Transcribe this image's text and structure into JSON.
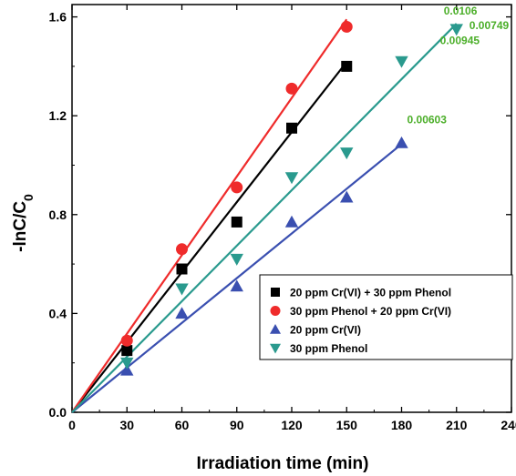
{
  "chart_data": {
    "type": "scatter",
    "xlabel": "Irradiation time (min)",
    "ylabel_main": "-lnC/C",
    "ylabel_sub": "0",
    "xlim": [
      0,
      240
    ],
    "ylim": [
      0,
      1.65
    ],
    "xticks": [
      "0",
      "30",
      "60",
      "90",
      "120",
      "150",
      "180",
      "210",
      "240"
    ],
    "yticks": [
      "0.0",
      "0.4",
      "0.8",
      "1.2",
      "1.6"
    ],
    "grid": false,
    "legend_position": "center-right",
    "series": [
      {
        "name": "20 ppm Cr(VI) + 30 ppm Phenol",
        "marker": "square",
        "color": "#000000",
        "x": [
          30,
          60,
          90,
          120,
          150
        ],
        "y": [
          0.25,
          0.58,
          0.77,
          1.15,
          1.4
        ],
        "fit_slope": 0.00945,
        "fit_x_end": 150
      },
      {
        "name": "30 ppm Phenol + 20 ppm Cr(VI)",
        "marker": "circle",
        "color": "#ef2b2b",
        "x": [
          30,
          60,
          90,
          120,
          150
        ],
        "y": [
          0.29,
          0.66,
          0.91,
          1.31,
          1.56
        ],
        "fit_slope": 0.0106,
        "fit_x_end": 150
      },
      {
        "name": "20 ppm Cr(VI)",
        "marker": "triangle-up",
        "color": "#3a4fb0",
        "x": [
          30,
          60,
          90,
          120,
          150,
          180
        ],
        "y": [
          0.17,
          0.4,
          0.51,
          0.77,
          0.87,
          1.09
        ],
        "fit_slope": 0.00603,
        "fit_x_end": 180
      },
      {
        "name": "30 ppm Phenol",
        "marker": "triangle-down",
        "color": "#2a9a8e",
        "x": [
          30,
          60,
          90,
          120,
          150,
          180,
          210
        ],
        "y": [
          0.2,
          0.5,
          0.62,
          0.95,
          1.05,
          1.42,
          1.55
        ],
        "fit_slope": 0.00749,
        "fit_x_end": 210
      }
    ],
    "annotations": [
      {
        "text": "0.0106",
        "color": "#4caf2a",
        "x": 203,
        "y": 1.61
      },
      {
        "text": "0.00945",
        "color": "#4caf2a",
        "x": 201,
        "y": 1.49
      },
      {
        "text": "0.00749",
        "color": "#4caf2a",
        "x": 217,
        "y": 1.55
      },
      {
        "text": "0.00603",
        "color": "#4caf2a",
        "x": 183,
        "y": 1.17
      }
    ]
  }
}
